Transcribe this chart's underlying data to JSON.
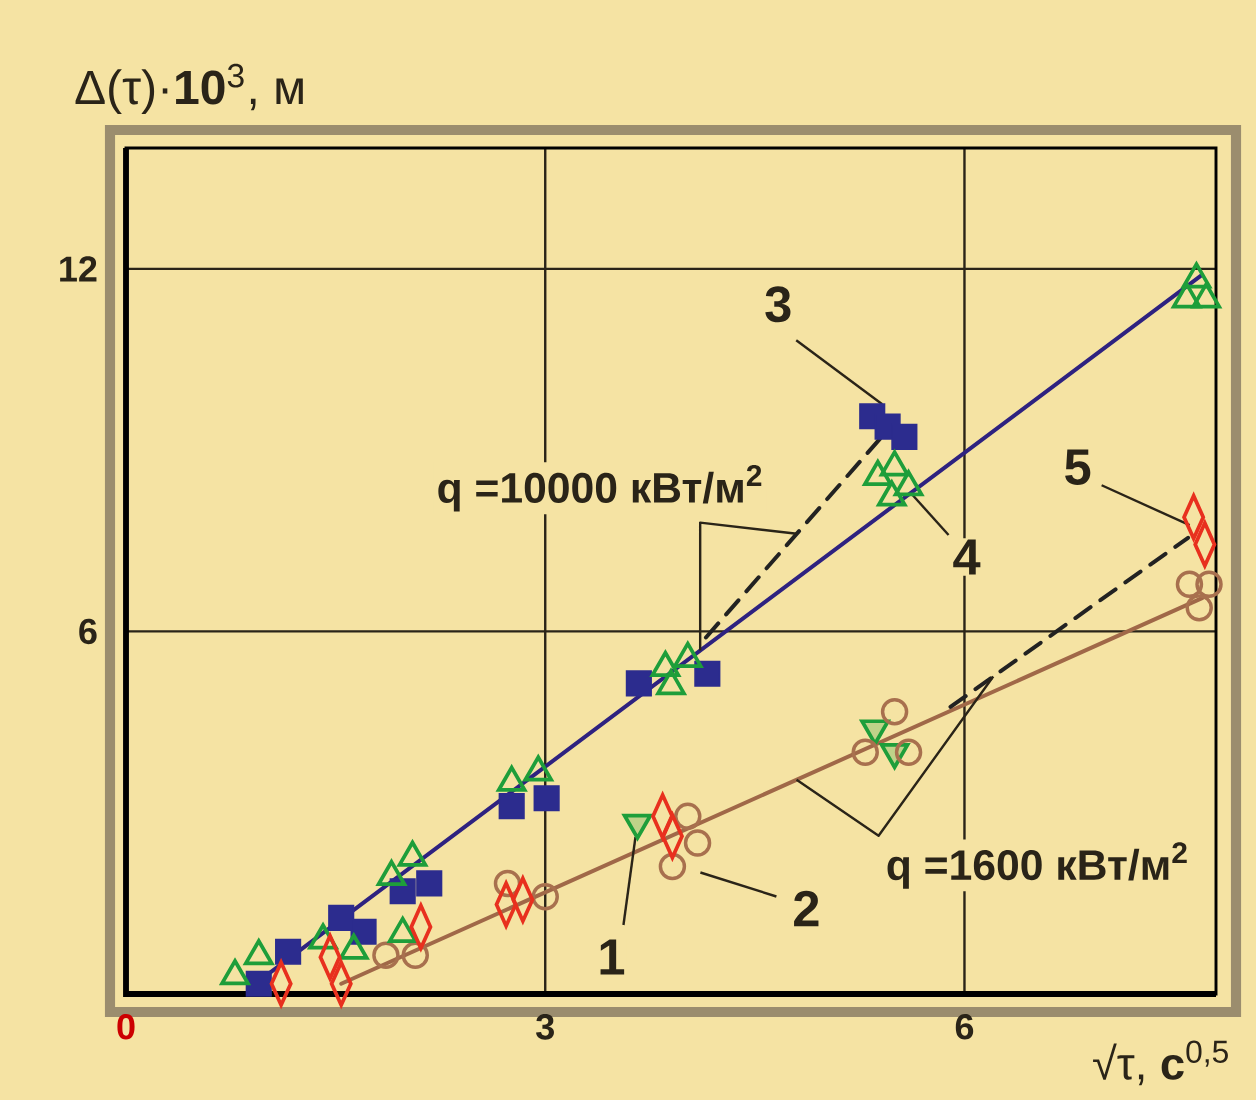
{
  "chart_data": {
    "type": "scatter",
    "xlabel": "√τ, **с**$^{0,5}$",
    "ylabel": "Δ(τ)·**10**$^{3}$, м",
    "xlim": [
      0,
      7.8
    ],
    "ylim": [
      0,
      14
    ],
    "xticks": [
      0,
      3,
      6
    ],
    "yticks": [
      6,
      12
    ],
    "grid": true,
    "annotations": [
      "q =10000 кВт/м$^{2}$",
      "q =1600 кВт/м$^{2}$"
    ],
    "series": [
      {
        "name": "1",
        "marker": "triangle-down",
        "color": "#1e9e3a",
        "x": [
          3.66,
          5.36,
          5.5
        ],
        "values": [
          2.83,
          4.39,
          4.0
        ]
      },
      {
        "name": "2",
        "marker": "circle",
        "color": "#a8704e",
        "x": [
          1.86,
          2.07,
          2.73,
          3.0,
          3.91,
          4.02,
          4.09,
          5.29,
          5.5,
          5.6,
          7.61,
          7.75,
          7.68
        ],
        "values": [
          0.64,
          0.64,
          1.83,
          1.61,
          2.11,
          2.94,
          2.5,
          4.0,
          4.67,
          4.0,
          6.78,
          6.78,
          6.39
        ]
      },
      {
        "name": "3",
        "marker": "square",
        "color": "#2c2c8e",
        "x": [
          0.95,
          1.16,
          1.54,
          1.7,
          1.98,
          2.17,
          2.76,
          3.01,
          3.67,
          4.16,
          5.34,
          5.45,
          5.57
        ],
        "values": [
          0.17,
          0.7,
          1.26,
          1.03,
          1.7,
          1.83,
          3.11,
          3.24,
          5.14,
          5.3,
          9.56,
          9.39,
          9.22
        ]
      },
      {
        "name": "4",
        "marker": "triangle",
        "color": "#1e9e3a",
        "x": [
          0.78,
          0.95,
          1.41,
          1.63,
          1.9,
          2.05,
          1.98,
          2.76,
          2.95,
          3.86,
          4.02,
          3.9,
          5.38,
          5.5,
          5.48,
          5.6,
          7.66,
          7.59,
          7.73
        ],
        "values": [
          0.3,
          0.63,
          0.89,
          0.72,
          1.94,
          2.26,
          1.0,
          3.5,
          3.67,
          5.4,
          5.55,
          5.1,
          8.56,
          8.72,
          8.22,
          8.39,
          11.83,
          11.5,
          11.5
        ]
      },
      {
        "name": "5",
        "marker": "diamond",
        "color": "#e8301e",
        "x": [
          1.11,
          1.46,
          1.54,
          2.11,
          2.72,
          2.84,
          3.84,
          3.91,
          7.64,
          7.72
        ],
        "values": [
          0.17,
          0.61,
          0.17,
          1.11,
          1.48,
          1.56,
          2.94,
          2.61,
          7.89,
          7.44
        ]
      },
      {
        "type": "line",
        "color": "#2e2280",
        "x": [
          1.0,
          7.7
        ],
        "values": [
          0.3,
          11.9
        ]
      },
      {
        "type": "line",
        "color": "#a06848",
        "x": [
          1.54,
          7.7
        ],
        "values": [
          0.17,
          6.55
        ]
      },
      {
        "type": "line",
        "color": "#222222",
        "line_style": "dashed",
        "x": [
          4.15,
          5.4
        ],
        "values": [
          5.9,
          9.2
        ]
      },
      {
        "type": "line",
        "color": "#222222",
        "line_style": "dashed",
        "x": [
          5.9,
          7.6
        ],
        "values": [
          4.75,
          7.55
        ]
      }
    ]
  }
}
